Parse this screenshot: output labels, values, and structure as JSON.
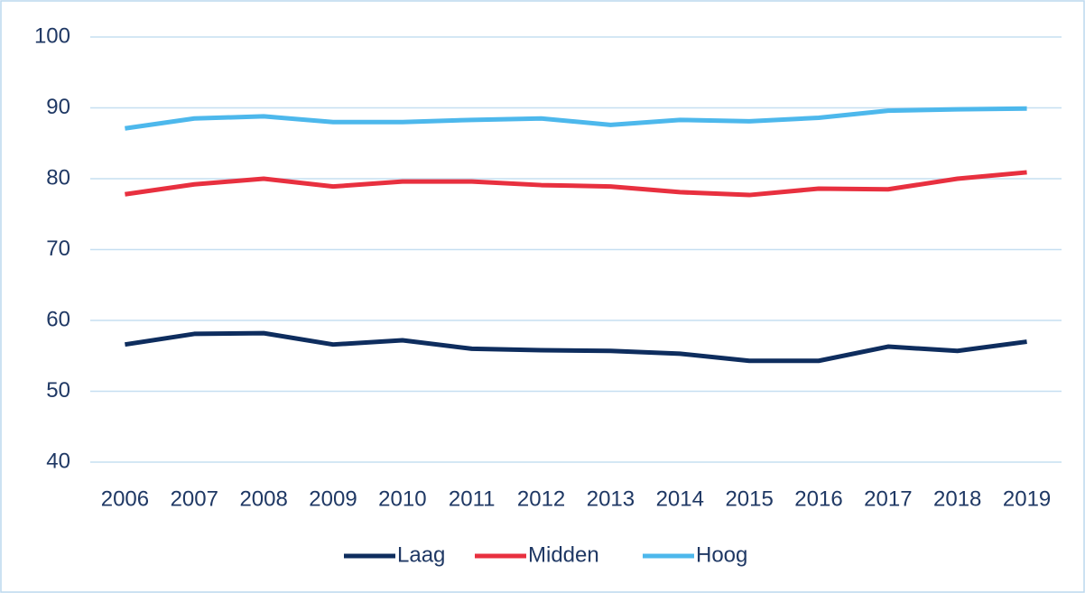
{
  "chart_data": {
    "type": "line",
    "categories": [
      "2006",
      "2007",
      "2008",
      "2009",
      "2010",
      "2011",
      "2012",
      "2013",
      "2014",
      "2015",
      "2016",
      "2017",
      "2018",
      "2019"
    ],
    "series": [
      {
        "name": "Laag",
        "color": "#0e2d5e",
        "values": [
          56.6,
          58.1,
          58.2,
          56.6,
          57.2,
          56.0,
          55.8,
          55.7,
          55.3,
          54.3,
          54.3,
          56.3,
          55.7,
          57.0
        ]
      },
      {
        "name": "Midden",
        "color": "#e8303f",
        "values": [
          77.8,
          79.2,
          80.0,
          78.9,
          79.6,
          79.6,
          79.1,
          78.9,
          78.1,
          77.7,
          78.6,
          78.5,
          80.0,
          80.9
        ]
      },
      {
        "name": "Hoog",
        "color": "#4db8ec",
        "values": [
          87.1,
          88.5,
          88.8,
          88.0,
          88.0,
          88.3,
          88.5,
          87.6,
          88.3,
          88.1,
          88.6,
          89.6,
          89.8,
          89.9
        ]
      }
    ],
    "ylim": [
      40,
      100
    ],
    "yticks": [
      40,
      50,
      60,
      70,
      80,
      90,
      100
    ],
    "grid": true,
    "legend": "bottom"
  }
}
